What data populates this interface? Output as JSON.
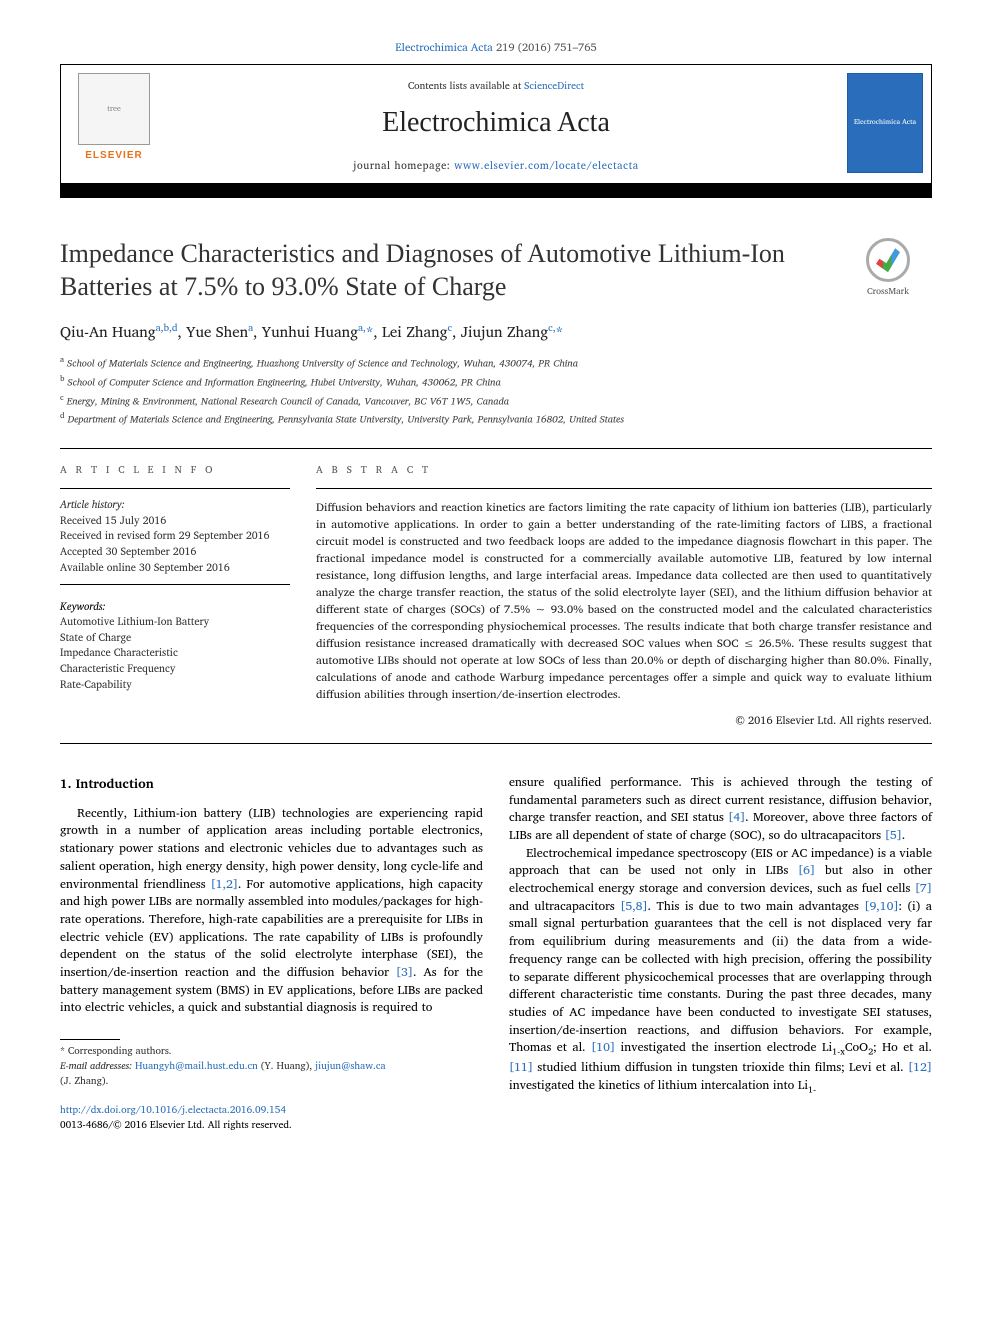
{
  "header": {
    "citation_prefix": "Electrochimica Acta",
    "citation_volume": "219 (2016) 751–765"
  },
  "banner": {
    "contents_label": "Contents lists available at ",
    "contents_link": "ScienceDirect",
    "journal_title": "Electrochimica Acta",
    "homepage_label": "journal homepage: ",
    "homepage_link": "www.elsevier.com/locate/electacta",
    "publisher_label": "ELSEVIER",
    "cover_label": "Electrochimica Acta"
  },
  "crossmark": {
    "label": "CrossMark"
  },
  "article": {
    "title": "Impedance Characteristics and Diagnoses of Automotive Lithium-Ion Batteries at 7.5% to 93.0% State of Charge",
    "authors_html": "Qiu-An Huang<sup>a,b,d</sup>, Yue Shen<sup>a</sup>, Yunhui Huang<sup>a,</sup><span class='ast'>*</span>, Lei Zhang<sup>c</sup>, Jiujun Zhang<sup>c,</sup><span class='ast'>*</span>",
    "affiliations": [
      {
        "key": "a",
        "text": "School of Materials Science and Engineering, Huazhong University of Science and Technology, Wuhan, 430074, PR China"
      },
      {
        "key": "b",
        "text": "School of Computer Science and Information Engineering, Hubei University, Wuhan, 430062, PR China"
      },
      {
        "key": "c",
        "text": "Energy, Mining & Environment, National Research Council of Canada, Vancouver, BC V6T 1W5, Canada"
      },
      {
        "key": "d",
        "text": "Department of Materials Science and Engineering, Pennsylvania State University, University Park, Pennsylvania 16802, United States"
      }
    ]
  },
  "info": {
    "section_label": "A R T I C L E  I N F O",
    "history_head": "Article history:",
    "history": [
      "Received 15 July 2016",
      "Received in revised form 29 September 2016",
      "Accepted 30 September 2016",
      "Available online 30 September 2016"
    ],
    "keywords_head": "Keywords:",
    "keywords": [
      "Automotive Lithium-Ion Battery",
      "State of Charge",
      "Impedance Characteristic",
      "Characteristic Frequency",
      "Rate-Capability"
    ]
  },
  "abstract": {
    "section_label": "A B S T R A C T",
    "text": "Diffusion behaviors and reaction kinetics are factors limiting the rate capacity of lithium ion batteries (LIB), particularly in automotive applications. In order to gain a better understanding of the rate-limiting factors of LIBS, a fractional circuit model is constructed and two feedback loops are added to the impedance diagnosis flowchart in this paper. The fractional impedance model is constructed for a commercially available automotive LIB, featured by low internal resistance, long diffusion lengths, and large interfacial areas. Impedance data collected are then used to quantitatively analyze the charge transfer reaction, the status of the solid electrolyte layer (SEI), and the lithium diffusion behavior at different state of charges (SOCs) of 7.5% ∼ 93.0% based on the constructed model and the calculated characteristics frequencies of the corresponding physiochemical processes. The results indicate that both charge transfer resistance and diffusion resistance increased dramatically with decreased SOC values when SOC ≤ 26.5%. These results suggest that automotive LIBs should not operate at low SOCs of less than 20.0% or depth of discharging higher than 80.0%. Finally, calculations of anode and cathode Warburg impedance percentages offer a simple and quick way to evaluate lithium diffusion abilities through insertion/de-insertion electrodes.",
    "copyright": "© 2016 Elsevier Ltd. All rights reserved."
  },
  "body": {
    "heading": "1. Introduction",
    "col1_p1_a": "Recently, Lithium-ion battery (LIB) technologies are experiencing rapid growth in a number of application areas including portable electronics, stationary power stations and electronic vehicles due to advantages such as salient operation, high energy density, high power density, long cycle-life and environmental friendliness ",
    "ref_1_2": "[1,2]",
    "col1_p1_b": ". For automotive applications, high capacity and high power LIBs are normally assembled into modules/packages for high-rate operations. Therefore, high-rate capabilities are a prerequisite for LIBs in electric vehicle (EV) applications. The rate capability of LIBs is profoundly dependent on the status of the solid electrolyte interphase (SEI), the insertion/de-insertion reaction and the diffusion behavior ",
    "ref_3": "[3]",
    "col1_p1_c": ". As for the battery management system (BMS) in EV applications, before LIBs are packed into electric vehicles, a quick and substantial diagnosis is required to",
    "col2_p1_a": "ensure qualified performance. This is achieved through the testing of fundamental parameters such as direct current resistance, diffusion behavior, charge transfer reaction, and SEI status ",
    "ref_4": "[4]",
    "col2_p1_b": ". Moreover, above three factors of LIBs are all dependent of state of charge (SOC), so do ultracapacitors ",
    "ref_5": "[5]",
    "col2_p1_c": ".",
    "col2_p2_a": "Electrochemical impedance spectroscopy (EIS or AC impedance) is a viable approach that can be used not only in LIBs ",
    "ref_6": "[6]",
    "col2_p2_b": " but also in other electrochemical energy storage and conversion devices, such as fuel cells ",
    "ref_7": "[7]",
    "col2_p2_c": " and ultracapacitors ",
    "ref_5_8": "[5,8]",
    "col2_p2_d": ". This is due to two main advantages ",
    "ref_9_10": "[9,10]",
    "col2_p2_e": ": (i) a small signal perturbation guarantees that the cell is not displaced very far from equilibrium during measurements and (ii) the data from a wide-frequency range can be collected with high precision, offering the possibility to separate different physicochemical processes that are overlapping through different characteristic time constants. During the past three decades, many studies of AC impedance have been conducted to investigate SEI statuses, insertion/de-insertion reactions, and diffusion behaviors. For example, Thomas et al. ",
    "ref_10": "[10]",
    "col2_p2_f": " investigated the insertion electrode Li",
    "sub_1x": "1-x",
    "col2_p2_g": "CoO",
    "sub_2": "2",
    "col2_p2_h": "; Ho et al. ",
    "ref_11": "[11]",
    "col2_p2_i": " studied lithium diffusion in tungsten trioxide thin films; Levi et al. ",
    "ref_12": "[12]",
    "col2_p2_j": " investigated the kinetics of lithium intercalation into Li",
    "sub_1m": "1-"
  },
  "footnote": {
    "corr_label": "* Corresponding authors.",
    "emails_label": "E-mail addresses: ",
    "email1": "Huangyh@mail.hust.edu.cn",
    "email1_who": " (Y. Huang), ",
    "email2": "jiujun@shaw.ca",
    "email2_who": "(J. Zhang)."
  },
  "doi": {
    "url": "http://dx.doi.org/10.1016/j.electacta.2016.09.154",
    "issn_line": "0013-4686/© 2016 Elsevier Ltd. All rights reserved."
  },
  "colors": {
    "link": "#2a6ebb",
    "elsevier_orange": "#e9711c",
    "text": "#222222"
  }
}
